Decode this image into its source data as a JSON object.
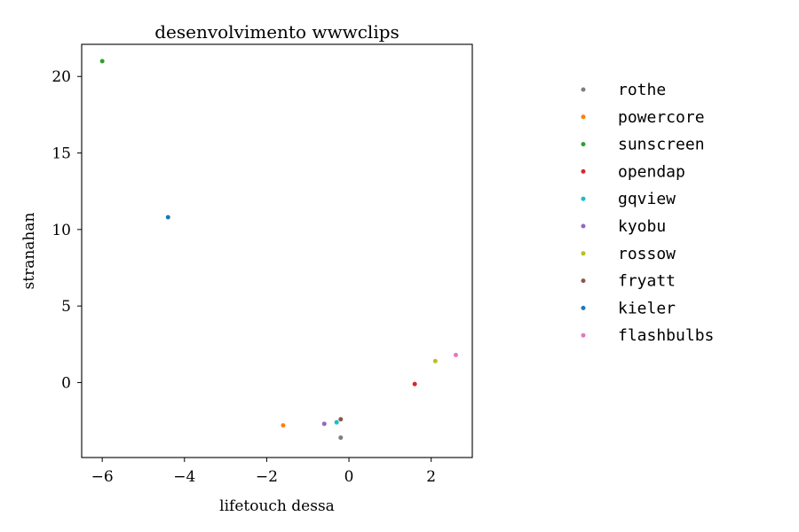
{
  "chart_data": {
    "type": "scatter",
    "title": "desenvolvimento wwwclips",
    "xlabel": "lifetouch dessa",
    "ylabel": "stranahan",
    "xlim": [
      -6.5,
      3.0
    ],
    "ylim": [
      -4.9,
      22.1
    ],
    "xticks": [
      -6,
      -4,
      -2,
      0,
      2
    ],
    "xtick_labels": [
      "−6",
      "−4",
      "−2",
      "0",
      "2"
    ],
    "yticks": [
      0,
      5,
      10,
      15,
      20
    ],
    "ytick_labels": [
      "0",
      "5",
      "10",
      "15",
      "20"
    ],
    "grid": false,
    "legend_position": "right, outside plot",
    "series": [
      {
        "name": "rothe",
        "color": "#7f7f7f",
        "points": [
          [
            -0.2,
            -3.6
          ]
        ]
      },
      {
        "name": "powercore",
        "color": "#ff7f0e",
        "points": [
          [
            -1.6,
            -2.8
          ]
        ]
      },
      {
        "name": "sunscreen",
        "color": "#2ca02c",
        "points": [
          [
            -6.0,
            21.0
          ]
        ]
      },
      {
        "name": "opendap",
        "color": "#d62728",
        "points": [
          [
            1.6,
            -0.1
          ]
        ]
      },
      {
        "name": "gqview",
        "color": "#17becf",
        "points": [
          [
            -0.3,
            -2.6
          ]
        ]
      },
      {
        "name": "kyobu",
        "color": "#9467bd",
        "points": [
          [
            -0.6,
            -2.7
          ]
        ]
      },
      {
        "name": "rossow",
        "color": "#bcbd22",
        "points": [
          [
            2.1,
            1.4
          ]
        ]
      },
      {
        "name": "fryatt",
        "color": "#8c564b",
        "points": [
          [
            -0.2,
            -2.4
          ]
        ]
      },
      {
        "name": "kieler",
        "color": "#1f77b4",
        "points": [
          [
            -4.4,
            10.8
          ]
        ]
      },
      {
        "name": "flashbulbs",
        "color": "#e377c2",
        "points": [
          [
            2.6,
            1.8
          ]
        ]
      }
    ]
  }
}
